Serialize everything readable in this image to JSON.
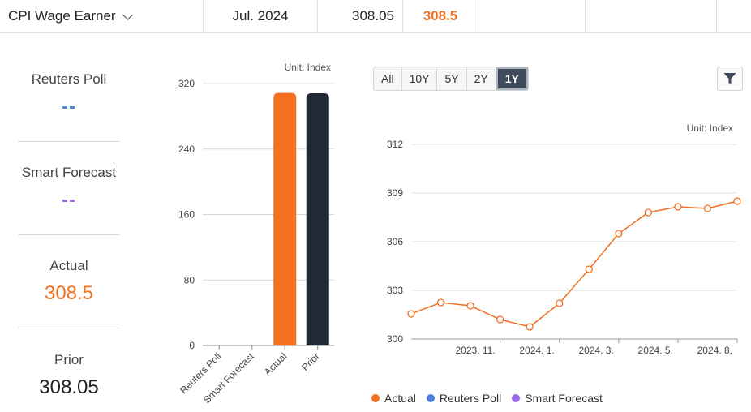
{
  "header": {
    "indicator_name": "CPI Wage Earner",
    "period": "Jul. 2024",
    "prior": "308.05",
    "actual": "308.5"
  },
  "summary": {
    "reuters_poll": {
      "label": "Reuters Poll",
      "value": "--"
    },
    "smart_forecast": {
      "label": "Smart Forecast",
      "value": "--"
    },
    "actual": {
      "label": "Actual",
      "value": "308.5"
    },
    "prior": {
      "label": "Prior",
      "value": "308.05"
    }
  },
  "ranges": {
    "items": [
      "All",
      "10Y",
      "5Y",
      "2Y",
      "1Y"
    ],
    "selected": "1Y"
  },
  "legend": {
    "actual": "Actual",
    "reuters_poll": "Reuters Poll",
    "smart_forecast": "Smart Forecast"
  },
  "colors": {
    "actual": "#f37021",
    "prior": "#1f2937",
    "reuters_poll": "#4f7fdd",
    "smart_forecast": "#9b68e6",
    "accent_button": "#3f4a5a"
  },
  "chart_data": [
    {
      "type": "bar",
      "unit_label": "Unit: Index",
      "categories": [
        "Reuters Poll",
        "Smart Forecast",
        "Actual",
        "Prior"
      ],
      "values": [
        null,
        null,
        308.5,
        308.05
      ],
      "colors": [
        "#4f7fdd",
        "#9b68e6",
        "#f37021",
        "#1f2937"
      ],
      "ylim": [
        0,
        320
      ],
      "yticks": [
        0,
        80,
        160,
        240,
        320
      ],
      "grid": true
    },
    {
      "type": "line",
      "unit_label": "Unit: Index",
      "series": [
        {
          "name": "Actual",
          "color": "#f37021",
          "points": [
            [
              "2023-08",
              301.55
            ],
            [
              "2023-09",
              302.25
            ],
            [
              "2023-10",
              302.05
            ],
            [
              "2023-11",
              301.2
            ],
            [
              "2023-12",
              300.75
            ],
            [
              "2024-01",
              302.2
            ],
            [
              "2024-02",
              304.3
            ],
            [
              "2024-03",
              306.5
            ],
            [
              "2024-04",
              307.8
            ],
            [
              "2024-05",
              308.15
            ],
            [
              "2024-06",
              308.05
            ],
            [
              "2024-07",
              308.5
            ]
          ]
        }
      ],
      "xtick_labels": [
        "2023. 11.",
        "2024. 1.",
        "2024. 3.",
        "2024. 5.",
        "2024. 8."
      ],
      "xtick_dates": [
        "2023-11",
        "2024-01",
        "2024-03",
        "2024-05",
        "2024-08"
      ],
      "ylim": [
        300,
        312
      ],
      "yticks": [
        300,
        303,
        306,
        309,
        312
      ],
      "grid": true
    }
  ]
}
